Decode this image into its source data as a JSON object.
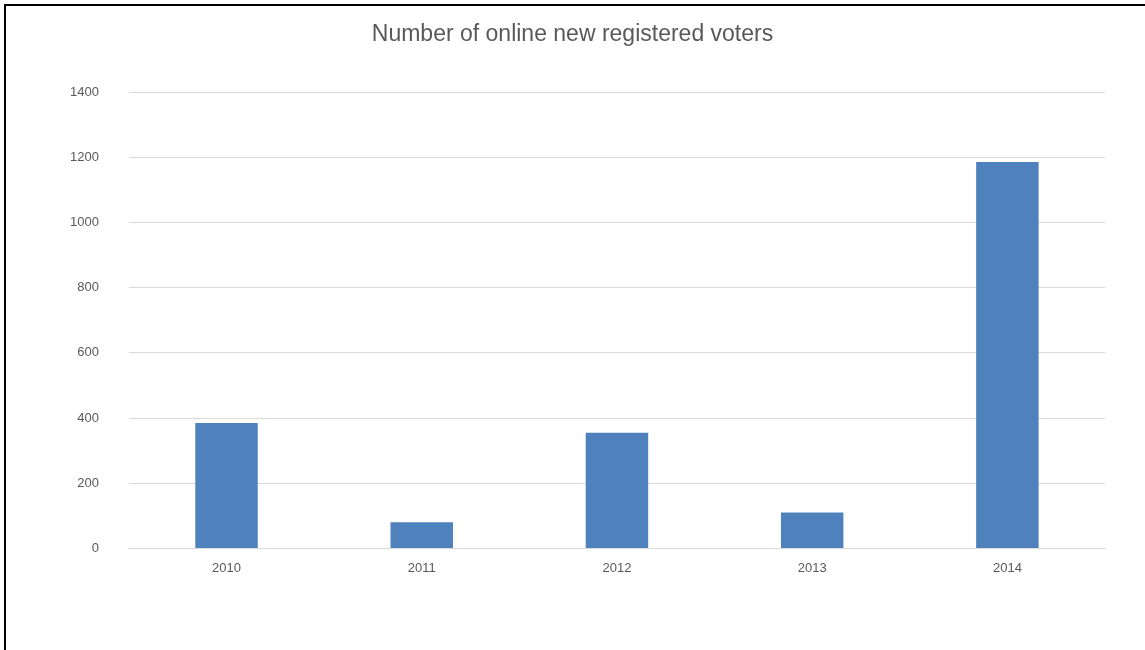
{
  "chart_data": {
    "type": "bar",
    "title": "Number of online new registered voters",
    "categories": [
      "2010",
      "2011",
      "2012",
      "2013",
      "2014"
    ],
    "values": [
      385,
      80,
      355,
      110,
      1185
    ],
    "color": "#4f81bd",
    "ylim": [
      0,
      1400
    ],
    "yticks": [
      0,
      200,
      400,
      600,
      800,
      1000,
      1200,
      1400
    ],
    "grid": "y",
    "legend": false
  }
}
